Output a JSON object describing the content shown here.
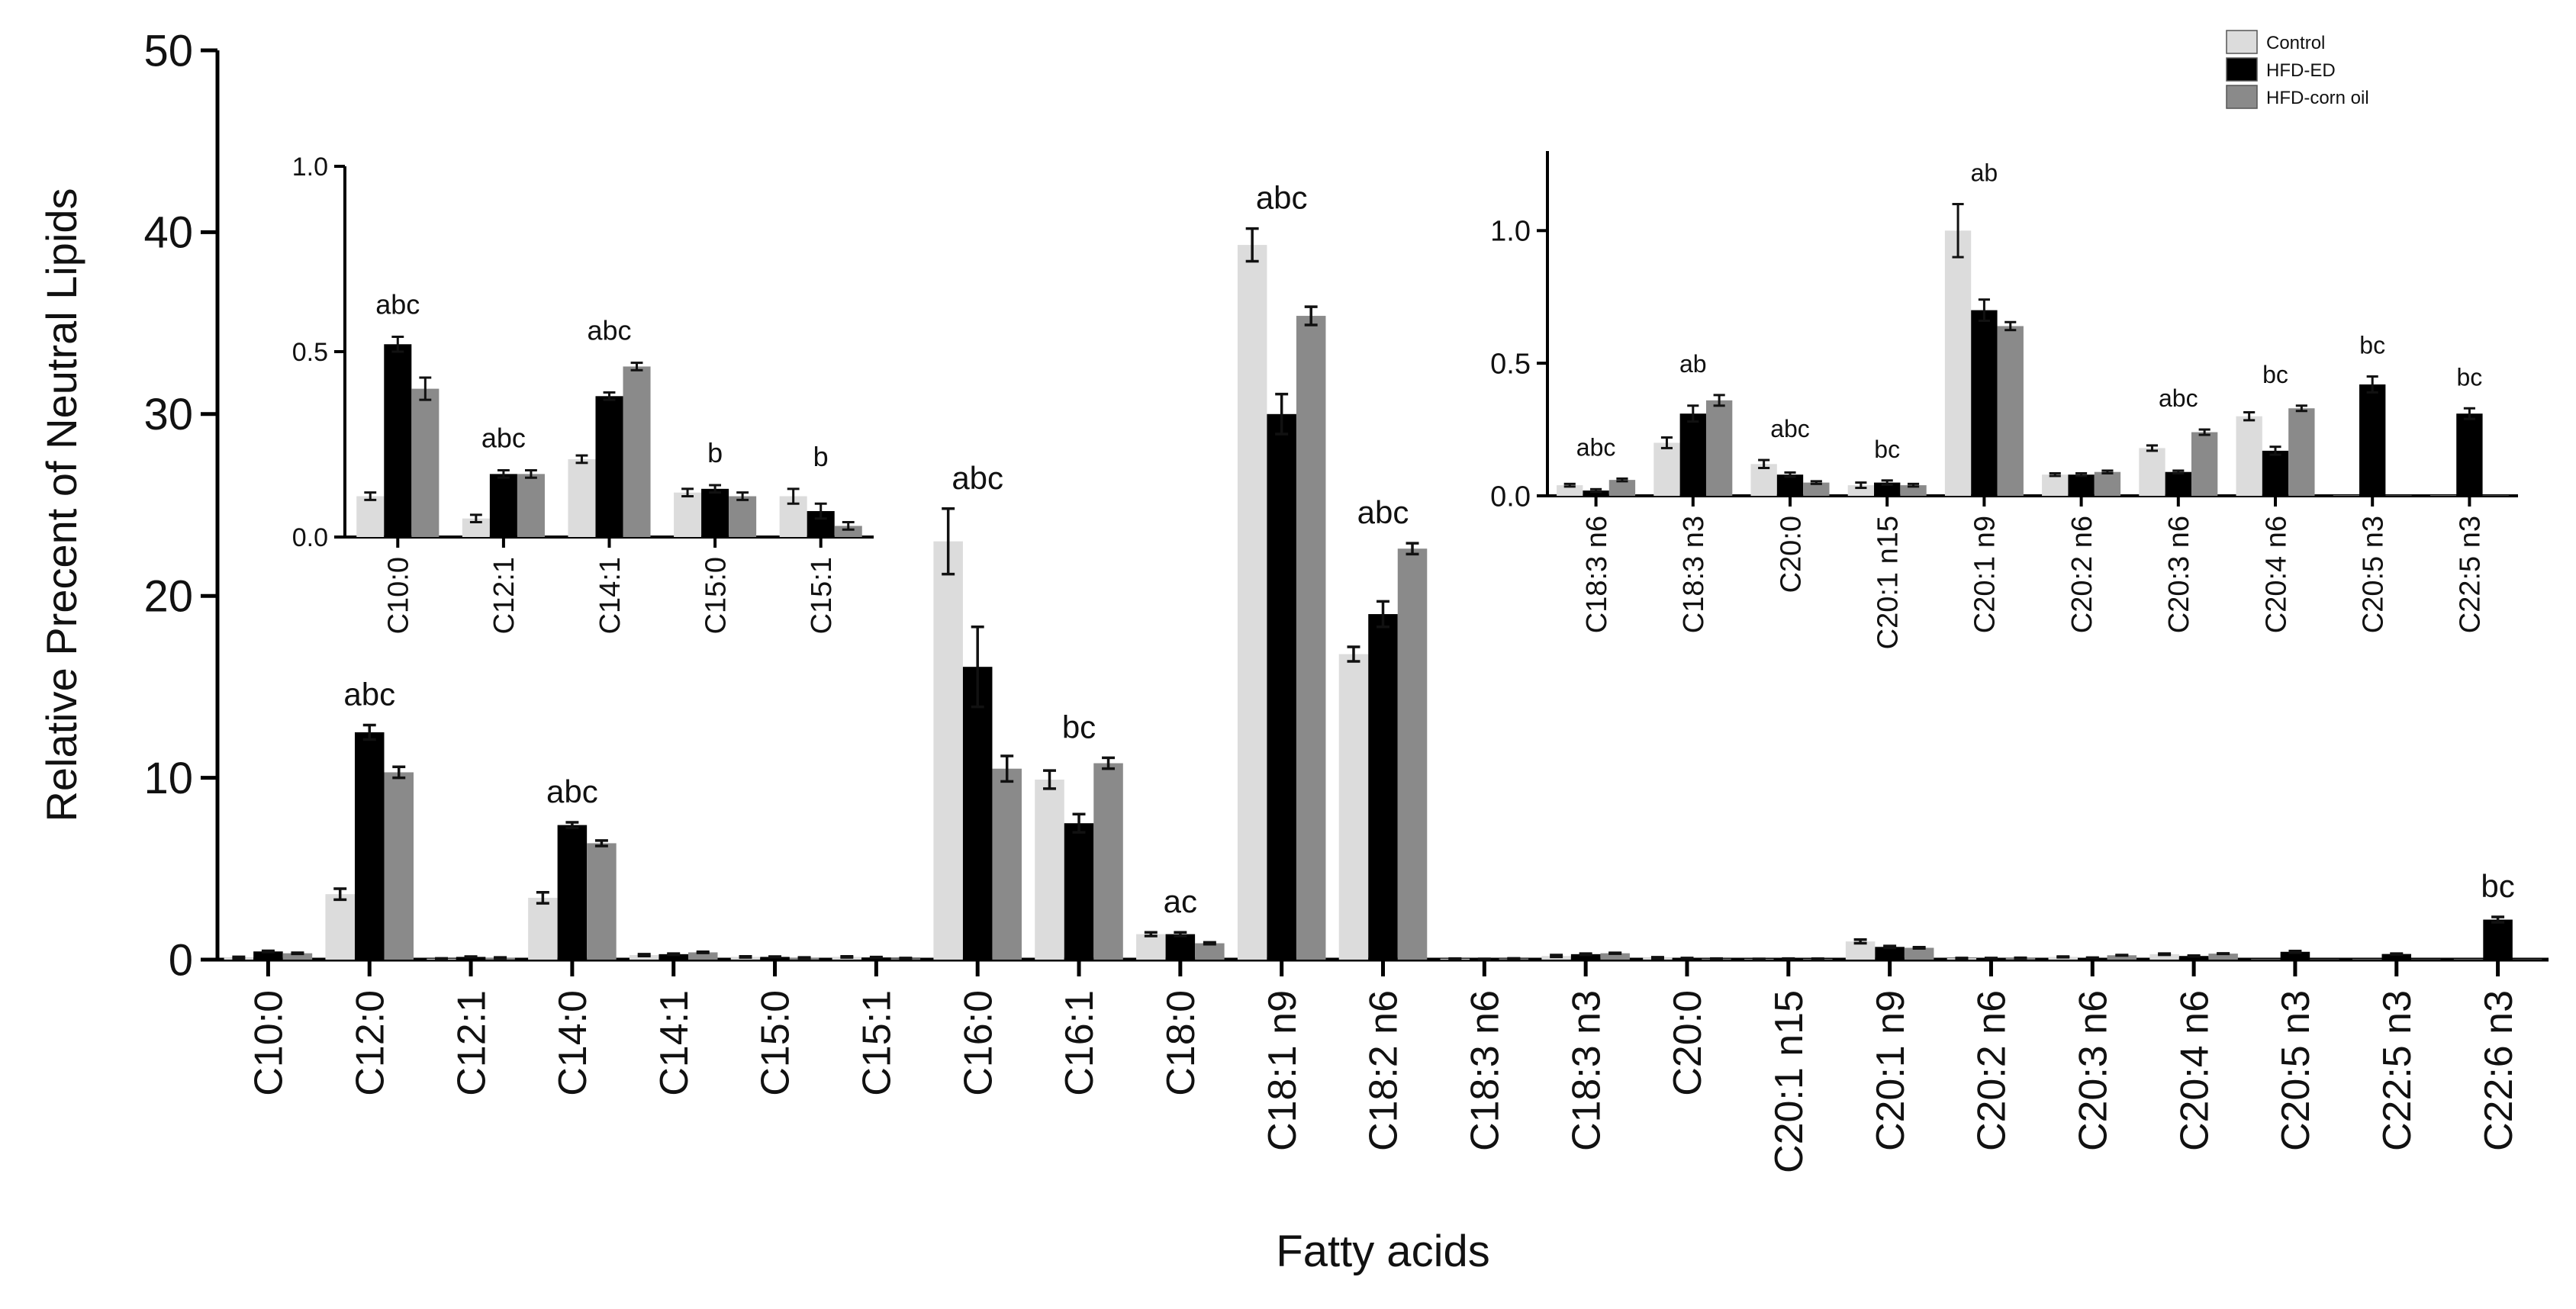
{
  "chart_data": [
    {
      "type": "bar",
      "xlabel": "Fatty acids",
      "ylabel": "Relative Precent of Neutral Lipids",
      "ylim": [
        0,
        50
      ],
      "yticks": [
        0,
        10,
        20,
        30,
        40,
        50
      ],
      "grid": false,
      "legend_position": "top-right",
      "categories": [
        "C10:0",
        "C12:0",
        "C12:1",
        "C14:0",
        "C14:1",
        "C15:0",
        "C15:1",
        "C16:0",
        "C16:1",
        "C18:0",
        "C18:1 n9",
        "C18:2 n6",
        "C18:3 n6",
        "C18:3 n3",
        "C20:0",
        "C20:1 n15",
        "C20:1 n9",
        "C20:2 n6",
        "C20:3 n6",
        "C20:4 n6",
        "C20:5 n3",
        "C22:5 n3",
        "C22:6 n3"
      ],
      "series": [
        {
          "name": "Control",
          "color": "#dcdcdc",
          "values": [
            0.1,
            3.6,
            0.05,
            3.4,
            0.25,
            0.15,
            0.15,
            23.0,
            9.9,
            1.4,
            39.3,
            16.8,
            0.05,
            0.2,
            0.1,
            0.03,
            1.0,
            0.08,
            0.15,
            0.3,
            0.0,
            0.0,
            0.0
          ],
          "errors": [
            0.05,
            0.3,
            0.02,
            0.3,
            0.05,
            0.03,
            0.03,
            1.8,
            0.5,
            0.1,
            0.9,
            0.4,
            0.01,
            0.05,
            0.03,
            0.01,
            0.1,
            0.01,
            0.02,
            0.03,
            0.0,
            0.0,
            0.0
          ]
        },
        {
          "name": "HFD-ED",
          "color": "#000000",
          "values": [
            0.45,
            12.5,
            0.15,
            7.4,
            0.3,
            0.15,
            0.12,
            16.1,
            7.5,
            1.4,
            30.0,
            19.0,
            0.03,
            0.3,
            0.08,
            0.05,
            0.7,
            0.08,
            0.1,
            0.2,
            0.43,
            0.31,
            2.2
          ],
          "errors": [
            0.03,
            0.4,
            0.02,
            0.15,
            0.03,
            0.02,
            0.02,
            2.2,
            0.5,
            0.1,
            1.1,
            0.7,
            0.01,
            0.03,
            0.01,
            0.01,
            0.05,
            0.01,
            0.01,
            0.02,
            0.04,
            0.02,
            0.15
          ]
        },
        {
          "name": "HFD-corn oil",
          "color": "#8a8a8a",
          "values": [
            0.35,
            10.3,
            0.1,
            6.4,
            0.4,
            0.1,
            0.07,
            10.5,
            10.8,
            0.9,
            35.4,
            22.6,
            0.06,
            0.35,
            0.05,
            0.04,
            0.65,
            0.09,
            0.24,
            0.33,
            0.0,
            0.0,
            0.0
          ],
          "errors": [
            0.03,
            0.3,
            0.02,
            0.15,
            0.03,
            0.02,
            0.02,
            0.7,
            0.3,
            0.05,
            0.5,
            0.3,
            0.01,
            0.02,
            0.01,
            0.01,
            0.03,
            0.01,
            0.01,
            0.01,
            0.0,
            0.0,
            0.0
          ]
        }
      ],
      "annotations": [
        {
          "category": "C12:0",
          "text": "abc"
        },
        {
          "category": "C14:0",
          "text": "abc"
        },
        {
          "category": "C16:0",
          "text": "abc"
        },
        {
          "category": "C16:1",
          "text": "bc"
        },
        {
          "category": "C18:0",
          "text": "ac"
        },
        {
          "category": "C18:1 n9",
          "text": "abc"
        },
        {
          "category": "C18:2 n6",
          "text": "abc"
        },
        {
          "category": "C22:6 n3",
          "text": "bc"
        }
      ]
    },
    {
      "type": "bar",
      "inset": "top-left",
      "ylim": [
        0,
        1.0
      ],
      "yticks": [
        "0.0",
        "0.5",
        "1.0"
      ],
      "categories": [
        "C10:0",
        "C12:1",
        "C14:1",
        "C15:0",
        "C15:1"
      ],
      "series": [
        {
          "name": "Control",
          "values": [
            0.11,
            0.05,
            0.21,
            0.12,
            0.11
          ],
          "errors": [
            0.01,
            0.01,
            0.01,
            0.01,
            0.02
          ]
        },
        {
          "name": "HFD-ED",
          "values": [
            0.52,
            0.17,
            0.38,
            0.13,
            0.07
          ],
          "errors": [
            0.02,
            0.01,
            0.01,
            0.01,
            0.02
          ]
        },
        {
          "name": "HFD-corn oil",
          "values": [
            0.4,
            0.17,
            0.46,
            0.11,
            0.03
          ],
          "errors": [
            0.03,
            0.01,
            0.01,
            0.01,
            0.01
          ]
        }
      ],
      "annotations": [
        {
          "category": "C10:0",
          "text": "abc"
        },
        {
          "category": "C12:1",
          "text": "abc"
        },
        {
          "category": "C14:1",
          "text": "abc"
        },
        {
          "category": "C15:0",
          "text": "b"
        },
        {
          "category": "C15:1",
          "text": "b"
        }
      ]
    },
    {
      "type": "bar",
      "inset": "top-right",
      "ylim": [
        0,
        1.3
      ],
      "yticks": [
        "0.0",
        "0.5",
        "1.0"
      ],
      "categories": [
        "C18:3 n6",
        "C18:3 n3",
        "C20:0",
        "C20:1 n15",
        "C20:1 n9",
        "C20:2 n6",
        "C20:3 n6",
        "C20:4 n6",
        "C20:5 n3",
        "C22:5 n3"
      ],
      "series": [
        {
          "name": "Control",
          "values": [
            0.04,
            0.2,
            0.12,
            0.04,
            1.0,
            0.08,
            0.18,
            0.3,
            0.0,
            0.0
          ],
          "errors": [
            0.005,
            0.02,
            0.015,
            0.01,
            0.1,
            0.005,
            0.01,
            0.015,
            0.0,
            0.0
          ]
        },
        {
          "name": "HFD-ED",
          "values": [
            0.02,
            0.31,
            0.08,
            0.05,
            0.7,
            0.08,
            0.09,
            0.17,
            0.42,
            0.31
          ],
          "errors": [
            0.005,
            0.03,
            0.008,
            0.008,
            0.04,
            0.005,
            0.005,
            0.015,
            0.03,
            0.02
          ]
        },
        {
          "name": "HFD-corn oil",
          "values": [
            0.06,
            0.36,
            0.05,
            0.04,
            0.64,
            0.09,
            0.24,
            0.33,
            0.0,
            0.0
          ],
          "errors": [
            0.005,
            0.02,
            0.005,
            0.005,
            0.015,
            0.005,
            0.01,
            0.01,
            0.0,
            0.0
          ]
        }
      ],
      "annotations": [
        {
          "category": "C18:3 n6",
          "text": "abc"
        },
        {
          "category": "C18:3 n3",
          "text": "ab"
        },
        {
          "category": "C20:0",
          "text": "abc"
        },
        {
          "category": "C20:1 n15",
          "text": "bc"
        },
        {
          "category": "C20:1 n9",
          "text": "ab"
        },
        {
          "category": "C20:3 n6",
          "text": "abc"
        },
        {
          "category": "C20:4 n6",
          "text": "bc"
        },
        {
          "category": "C20:5 n3",
          "text": "bc"
        },
        {
          "category": "C22:5 n3",
          "text": "bc"
        }
      ]
    }
  ]
}
